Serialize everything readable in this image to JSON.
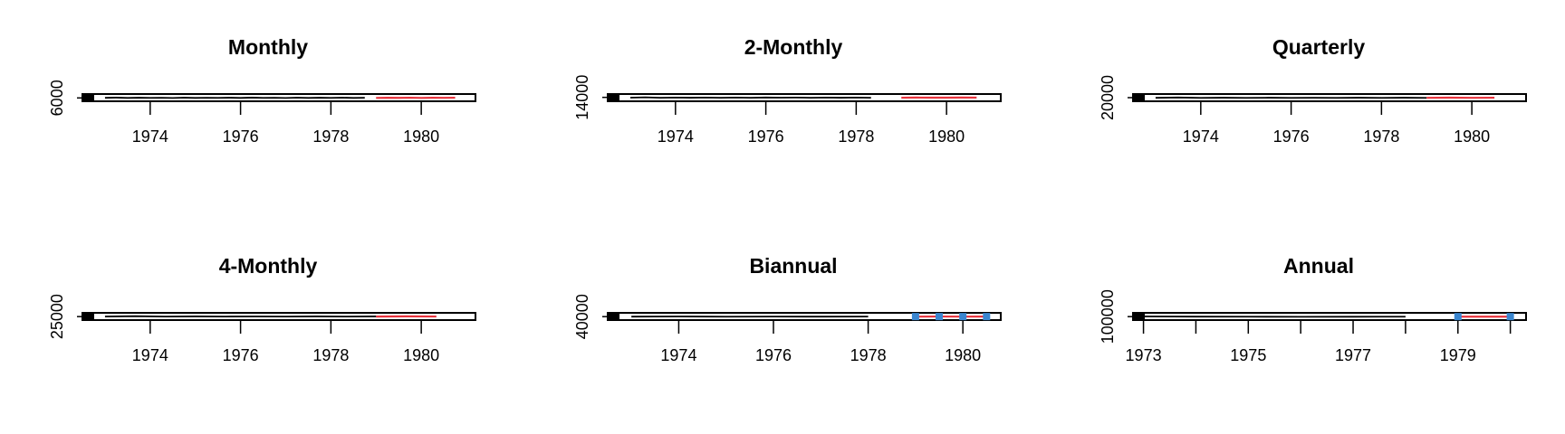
{
  "chart_data": [
    {
      "type": "line",
      "title": "Monthly",
      "xlabel": "",
      "ylabel": "",
      "xlim": [
        1972.5,
        1981.2
      ],
      "x_ticks": [
        1974,
        1976,
        1978,
        1980
      ],
      "x_tick_labels": [
        "1974",
        "1976",
        "1978",
        "1980"
      ],
      "ylim": [
        0,
        13000
      ],
      "y_ticks": [
        6000
      ],
      "y_tick_labels": [
        "6000"
      ],
      "series": [
        {
          "role": "history",
          "color": "#000000",
          "x_start": 1973.0,
          "x_step": 0.25,
          "values": [
            6200,
            6600,
            6000,
            6400,
            6100,
            6300,
            5900,
            6500,
            6000,
            6300,
            6100,
            6400,
            6000,
            6600,
            6100,
            6300,
            5900,
            6500,
            6000,
            6400,
            6100,
            6500,
            6000,
            6300
          ]
        },
        {
          "role": "forecast-interval",
          "color": "#a4aad8",
          "x_start": 1979.0,
          "x_step": 0.25,
          "lower": [
            5500,
            5600,
            5500,
            5600,
            5500,
            5600,
            5500,
            5600
          ],
          "upper": [
            6900,
            7000,
            6900,
            7000,
            6900,
            7000,
            6900,
            7000
          ]
        },
        {
          "role": "forecast",
          "color": "#e8323c",
          "x_start": 1979.0,
          "x_step": 0.25,
          "values": [
            6000,
            6300,
            6100,
            6400,
            6000,
            6300,
            6200,
            6400
          ]
        }
      ]
    },
    {
      "type": "line",
      "title": "2-Monthly",
      "xlabel": "",
      "ylabel": "",
      "xlim": [
        1972.5,
        1981.2
      ],
      "x_ticks": [
        1974,
        1976,
        1978,
        1980
      ],
      "x_tick_labels": [
        "1974",
        "1976",
        "1978",
        "1980"
      ],
      "ylim": [
        0,
        26000
      ],
      "y_ticks": [
        14000
      ],
      "y_tick_labels": [
        "14000"
      ],
      "series": [
        {
          "role": "history",
          "color": "#000000",
          "x_start": 1973.0,
          "x_step": 0.333,
          "values": [
            13000,
            14200,
            12600,
            13400,
            12800,
            13500,
            12700,
            13300,
            12600,
            13600,
            12900,
            13300,
            12700,
            13500,
            12800,
            13400,
            12600
          ]
        },
        {
          "role": "forecast-interval",
          "color": "#a4aad8",
          "x_start": 1979.0,
          "x_step": 0.333,
          "lower": [
            11800,
            11900,
            11800,
            11900,
            11800,
            11900
          ],
          "upper": [
            14400,
            14500,
            14400,
            14500,
            14400,
            14500
          ]
        },
        {
          "role": "forecast",
          "color": "#e8323c",
          "x_start": 1979.0,
          "x_step": 0.333,
          "values": [
            12800,
            13400,
            12900,
            13000,
            13500,
            13200
          ]
        }
      ]
    },
    {
      "type": "line",
      "title": "Quarterly",
      "xlabel": "",
      "ylabel": "",
      "xlim": [
        1972.5,
        1981.2
      ],
      "x_ticks": [
        1974,
        1976,
        1978,
        1980
      ],
      "x_tick_labels": [
        "1974",
        "1976",
        "1978",
        "1980"
      ],
      "ylim": [
        0,
        40000
      ],
      "y_ticks": [
        20000
      ],
      "y_tick_labels": [
        "20000"
      ],
      "series": [
        {
          "role": "history",
          "color": "#000000",
          "x_start": 1973.0,
          "x_step": 0.5,
          "values": [
            19000,
            21000,
            18800,
            19800,
            18900,
            19600,
            18700,
            19500,
            18800,
            19700,
            18900,
            19600,
            18800
          ]
        },
        {
          "role": "forecast-interval",
          "color": "#a4aad8",
          "x_start": 1979.0,
          "x_step": 0.5,
          "lower": [
            17500,
            17600,
            17500,
            17600
          ],
          "upper": [
            21500,
            21600,
            21500,
            21600
          ]
        },
        {
          "role": "forecast",
          "color": "#e8323c",
          "x_start": 1979.0,
          "x_step": 0.5,
          "values": [
            19000,
            19900,
            19100,
            19700
          ]
        }
      ]
    },
    {
      "type": "line",
      "title": "4-Monthly",
      "xlabel": "",
      "ylabel": "",
      "xlim": [
        1972.5,
        1981.2
      ],
      "x_ticks": [
        1974,
        1976,
        1978,
        1980
      ],
      "x_tick_labels": [
        "1974",
        "1976",
        "1978",
        "1980"
      ],
      "ylim": [
        0,
        52000
      ],
      "y_ticks": [
        25000
      ],
      "y_tick_labels": [
        "25000"
      ],
      "series": [
        {
          "role": "history",
          "color": "#000000",
          "x_start": 1973.0,
          "x_step": 0.667,
          "values": [
            25500,
            28000,
            25200,
            26400,
            25300,
            26200,
            25100,
            26300,
            25200,
            26500
          ]
        },
        {
          "role": "forecast-interval",
          "color": "#a4aad8",
          "x_start": 1979.0,
          "x_step": 0.667,
          "lower": [
            23500,
            23600,
            23500
          ],
          "upper": [
            28500,
            28600,
            28500
          ]
        },
        {
          "role": "forecast",
          "color": "#e8323c",
          "x_start": 1979.0,
          "x_step": 0.667,
          "values": [
            25300,
            26600,
            25500
          ]
        }
      ]
    },
    {
      "type": "line",
      "title": "Biannual",
      "xlabel": "",
      "ylabel": "",
      "xlim": [
        1972.5,
        1980.8
      ],
      "x_ticks": [
        1974,
        1976,
        1978,
        1980
      ],
      "x_tick_labels": [
        "1974",
        "1976",
        "1978",
        "1980"
      ],
      "ylim": [
        0,
        84000
      ],
      "y_ticks": [
        40000
      ],
      "y_tick_labels": [
        "40000"
      ],
      "series": [
        {
          "role": "history",
          "color": "#000000",
          "x_start": 1973.0,
          "x_step": 1.0,
          "values": [
            40000,
            42000,
            39500,
            40800,
            39800,
            40600
          ]
        },
        {
          "role": "forecast-interval",
          "color": "#a4aad8",
          "x_start": 1979.0,
          "x_step": 0.5,
          "lower": [
            36000,
            36000,
            36000,
            36000
          ],
          "upper": [
            44000,
            44000,
            44000,
            44000
          ]
        },
        {
          "role": "forecast",
          "color": "#e8323c",
          "x_start": 1979.0,
          "x_step": 0.5,
          "values": [
            39800,
            41200,
            40000,
            41000
          ]
        },
        {
          "role": "forecast-points",
          "color": "#3a86d0",
          "x_start": 1979.0,
          "x_step": 0.5,
          "values": [
            40500,
            40500,
            40500,
            40500
          ]
        }
      ]
    },
    {
      "type": "line",
      "title": "Annual",
      "xlabel": "",
      "ylabel": "",
      "xlim": [
        1972.8,
        1980.3
      ],
      "x_ticks": [
        1973,
        1974,
        1975,
        1976,
        1977,
        1978,
        1979,
        1980
      ],
      "x_tick_labels": [
        "1973",
        "",
        "1975",
        "",
        "1977",
        "",
        "1979",
        ""
      ],
      "ylim": [
        0,
        210000
      ],
      "y_ticks": [
        100000
      ],
      "y_tick_labels": [
        "100000"
      ],
      "series": [
        {
          "role": "history",
          "color": "#000000",
          "x_start": 1973.0,
          "x_step": 1.0,
          "values": [
            106000,
            100000,
            97500,
            95500,
            97000,
            99000
          ]
        },
        {
          "role": "forecast-interval",
          "color": "#a4aad8",
          "x_start": 1979.0,
          "x_step": 1.0,
          "lower": [
            88000,
            88000
          ],
          "upper": [
            112000,
            112000
          ]
        },
        {
          "role": "forecast",
          "color": "#e8323c",
          "x_start": 1979.0,
          "x_step": 1.0,
          "values": [
            98000,
            98500
          ]
        },
        {
          "role": "forecast-points",
          "color": "#3a86d0",
          "x_start": 1979.0,
          "x_step": 1.0,
          "values": [
            100000,
            100000
          ]
        }
      ]
    }
  ]
}
